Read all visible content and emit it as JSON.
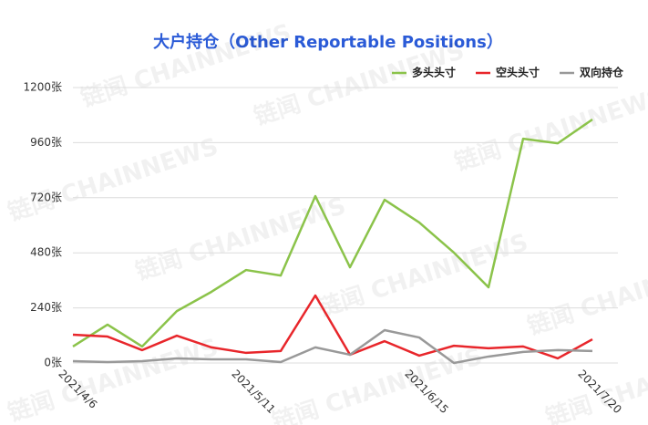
{
  "chart_data": {
    "type": "line",
    "title": "大户持仓（Other Reportable Positions）",
    "watermark": "链闻 CHAINNEWS",
    "categories": [
      "2021/4/6",
      null,
      null,
      null,
      null,
      "2021/5/11",
      null,
      null,
      null,
      null,
      "2021/6/15",
      null,
      null,
      null,
      null,
      "2021/7/20"
    ],
    "series": [
      {
        "name": "多头头寸",
        "color": "#8bc34a",
        "values": [
          72,
          167,
          72,
          226,
          310,
          405,
          381,
          727,
          417,
          711,
          612,
          481,
          330,
          977,
          957,
          1061
        ]
      },
      {
        "name": "空头头寸",
        "color": "#e8262b",
        "values": [
          123,
          115,
          56,
          119,
          68,
          44,
          52,
          294,
          36,
          95,
          32,
          75,
          64,
          72,
          20,
          103
        ]
      },
      {
        "name": "双向持仓",
        "color": "#999999",
        "values": [
          8,
          4,
          8,
          20,
          16,
          16,
          4,
          68,
          36,
          143,
          111,
          0,
          28,
          48,
          56,
          52
        ]
      }
    ],
    "ylim": [
      0,
      1200
    ],
    "yticks": [
      {
        "value": 0,
        "label": "0张"
      },
      {
        "value": 240,
        "label": "240张"
      },
      {
        "value": 480,
        "label": "480张"
      },
      {
        "value": 720,
        "label": "720张"
      },
      {
        "value": 960,
        "label": "960张"
      },
      {
        "value": 1200,
        "label": "1200张"
      }
    ],
    "grid": true,
    "legend": "top-right"
  }
}
